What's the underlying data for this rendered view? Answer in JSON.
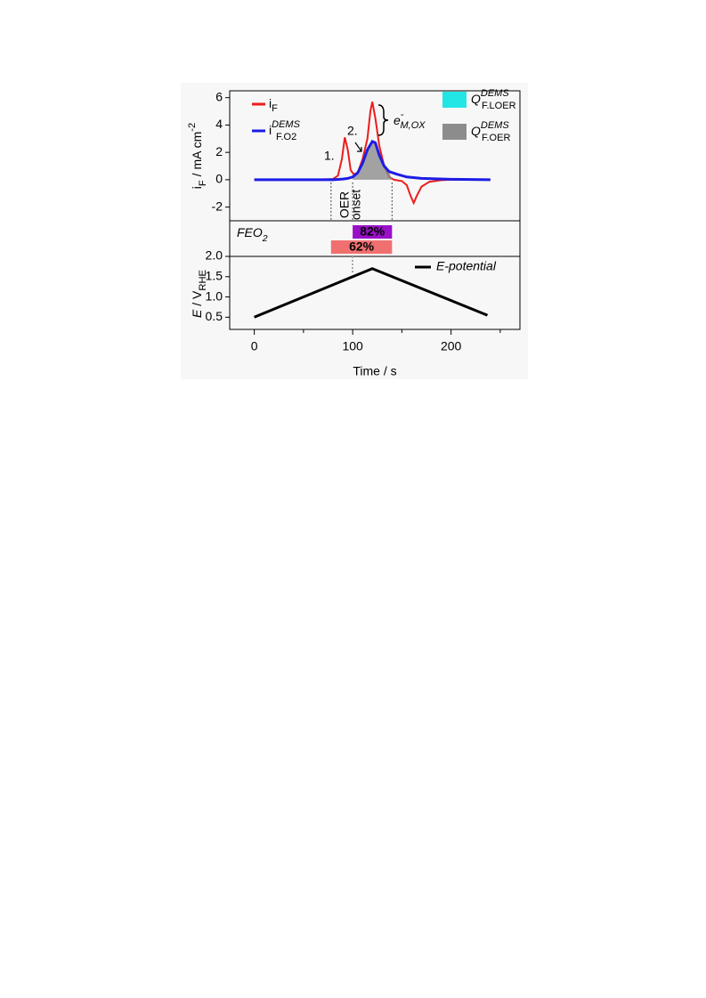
{
  "chart_data": [
    {
      "type": "line",
      "ylabel": {
        "main": "i",
        "sub": "F",
        "rest": " / mA cm",
        "sup": "-2"
      },
      "xlim": [
        -25,
        270
      ],
      "ylim": [
        -3,
        6.5
      ],
      "yticks": [
        -2,
        0,
        2,
        4,
        6
      ],
      "vlines": [
        78,
        100,
        140
      ],
      "series": [
        {
          "name": "i",
          "name_sub": "F",
          "color": "#ee1c1c",
          "x": [
            0,
            60,
            80,
            85,
            89,
            92,
            95,
            98,
            101,
            105,
            110,
            115,
            118,
            120,
            123,
            127,
            132,
            137,
            142,
            150,
            155,
            159,
            162,
            165,
            170,
            178,
            190,
            200,
            240
          ],
          "values": [
            0,
            0,
            0.05,
            0.3,
            1.5,
            3.1,
            2.2,
            0.7,
            0.4,
            0.5,
            1.5,
            3,
            5,
            5.7,
            4.5,
            2.5,
            1,
            0.2,
            0,
            -0.1,
            -0.4,
            -1.2,
            -1.7,
            -1.2,
            -0.5,
            -0.15,
            -0.03,
            0,
            0
          ]
        },
        {
          "name": "i",
          "name_sub": "F.O2",
          "name_sup": "DEMS",
          "color": "#1c1ce6",
          "x": [
            0,
            80,
            90,
            95,
            100,
            105,
            110,
            115,
            120,
            123,
            127,
            132,
            137,
            145,
            155,
            170,
            200,
            240
          ],
          "values": [
            0,
            0,
            0.05,
            0.1,
            0.2,
            0.5,
            1.2,
            2.2,
            2.8,
            2.7,
            1.8,
            1.0,
            0.6,
            0.4,
            0.2,
            0.1,
            0.03,
            0
          ],
          "fill_range": [
            100,
            140
          ]
        }
      ],
      "areas": [
        {
          "name": "Q",
          "sub": "F.LOER",
          "sup": "DEMS",
          "color": "#22e6e6"
        },
        {
          "name": "Q",
          "sub": "F.OER",
          "sup": "DEMS",
          "color": "#8c8c8c"
        }
      ],
      "annotations": {
        "peak1": "1.",
        "peak2": "2.",
        "e": "e",
        "e_sup": "-",
        "e_sub": "M,OX",
        "onset": [
          "OER",
          "onset"
        ]
      }
    },
    {
      "type": "range",
      "label": {
        "main": "FEO",
        "sub": "2"
      },
      "xlim": [
        -25,
        270
      ],
      "values": [
        82,
        62
      ],
      "value_labels": [
        "82%",
        "62%"
      ],
      "x_ranges": [
        [
          100,
          140
        ],
        [
          78,
          140
        ]
      ],
      "colors": [
        "#9a0fc8",
        "#f07070"
      ]
    },
    {
      "type": "line",
      "ylabel": {
        "main": "E",
        "rest": " / V",
        "sub": "RHE"
      },
      "xlabel": "Time / s",
      "xlim": [
        -25,
        270
      ],
      "ylim": [
        0.2,
        2.0
      ],
      "xticks": [
        0,
        100,
        200
      ],
      "xminorticks": [
        50,
        150,
        250
      ],
      "yticks": [
        {
          "value": 0.5,
          "label": "0.5"
        },
        {
          "value": 1.0,
          "label": "1.0"
        },
        {
          "value": 1.5,
          "label": "1.5"
        },
        {
          "value": 2.0,
          "label": "2.0"
        }
      ],
      "series": [
        {
          "name": "E-potential",
          "color": "#000000",
          "x": [
            0,
            120,
            237
          ],
          "values": [
            0.5,
            1.7,
            0.55
          ]
        }
      ]
    }
  ]
}
